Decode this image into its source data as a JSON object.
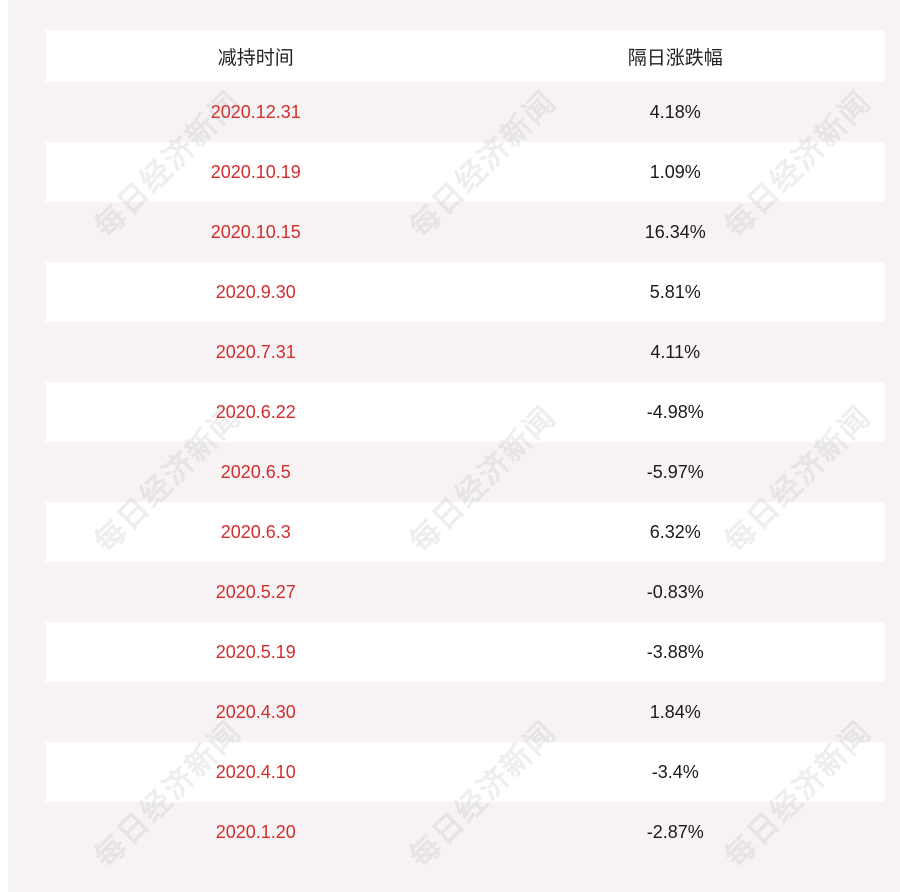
{
  "table": {
    "headers": [
      "减持时间",
      "隔日涨跌幅"
    ],
    "rows": [
      {
        "date": "2020.12.31",
        "change": "4.18%"
      },
      {
        "date": "2020.10.19",
        "change": "1.09%"
      },
      {
        "date": "2020.10.15",
        "change": "16.34%"
      },
      {
        "date": "2020.9.30",
        "change": "5.81%"
      },
      {
        "date": "2020.7.31",
        "change": "4.11%"
      },
      {
        "date": "2020.6.22",
        "change": "-4.98%"
      },
      {
        "date": "2020.6.5",
        "change": "-5.97%"
      },
      {
        "date": "2020.6.3",
        "change": "6.32%"
      },
      {
        "date": "2020.5.27",
        "change": "-0.83%"
      },
      {
        "date": "2020.5.19",
        "change": "-3.88%"
      },
      {
        "date": "2020.4.30",
        "change": "1.84%"
      },
      {
        "date": "2020.4.10",
        "change": "-3.4%"
      },
      {
        "date": "2020.1.20",
        "change": "-2.87%"
      }
    ]
  },
  "watermark": {
    "text": "每日经济新闻"
  },
  "colors": {
    "date_text": "#d42d2d",
    "value_text": "#1a1a1a",
    "panel_background": "#f7f3f4",
    "row_white": "#ffffff"
  }
}
